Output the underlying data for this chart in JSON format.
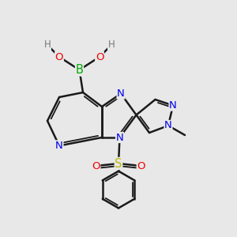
{
  "bg_color": "#e8e8e8",
  "bond_color": "#1a1a1a",
  "bond_width": 1.8,
  "atom_colors": {
    "N": "#0000ee",
    "O": "#ee0000",
    "B": "#00aa00",
    "S": "#bbbb00",
    "H": "#777777"
  },
  "font_size": 9.5,
  "xlim": [
    0,
    10
  ],
  "ylim": [
    0,
    10
  ]
}
